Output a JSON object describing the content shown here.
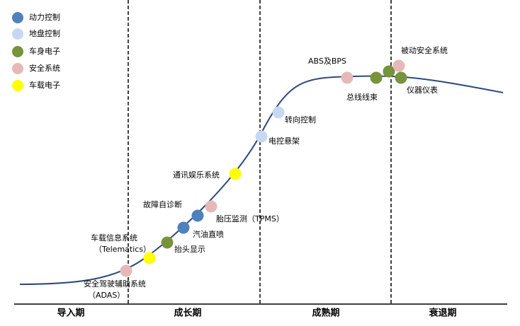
{
  "legend": [
    {
      "label": "动力控制",
      "color": "#4f81bd"
    },
    {
      "label": "地盘控制",
      "color": "#c6d9f1"
    },
    {
      "label": "车身电子",
      "color": "#77933c"
    },
    {
      "label": "安全系统",
      "color": "#e6b9b8"
    },
    {
      "label": "车载电子",
      "color": "#ffff00"
    }
  ],
  "stages": [
    "导入期",
    "成长期",
    "成熟期",
    "衰退期"
  ],
  "nodes": [
    {
      "label": "安全驾驶辅助系统",
      "sublabel": "（ADAS）",
      "category": 3
    },
    {
      "label": "车载信息系统",
      "sublabel": "（Telematics）",
      "category": 4
    },
    {
      "label": "抬头显示",
      "category": 2
    },
    {
      "label": "汽油直喷",
      "category": 0
    },
    {
      "label": "故障自诊断",
      "category": 0
    },
    {
      "label": "胎压监测（TPMS）",
      "category": 3
    },
    {
      "label": "通讯娱乐系统",
      "category": 4
    },
    {
      "label": "电控悬架",
      "category": 1
    },
    {
      "label": "转向控制",
      "category": 1
    },
    {
      "label": "ABS及BPS",
      "category": 3
    },
    {
      "label": "总线线束",
      "category": 2
    },
    {
      "category": 2
    },
    {
      "label": "被动安全系统",
      "category": 3
    },
    {
      "label": "仪器仪表",
      "category": 2
    }
  ]
}
